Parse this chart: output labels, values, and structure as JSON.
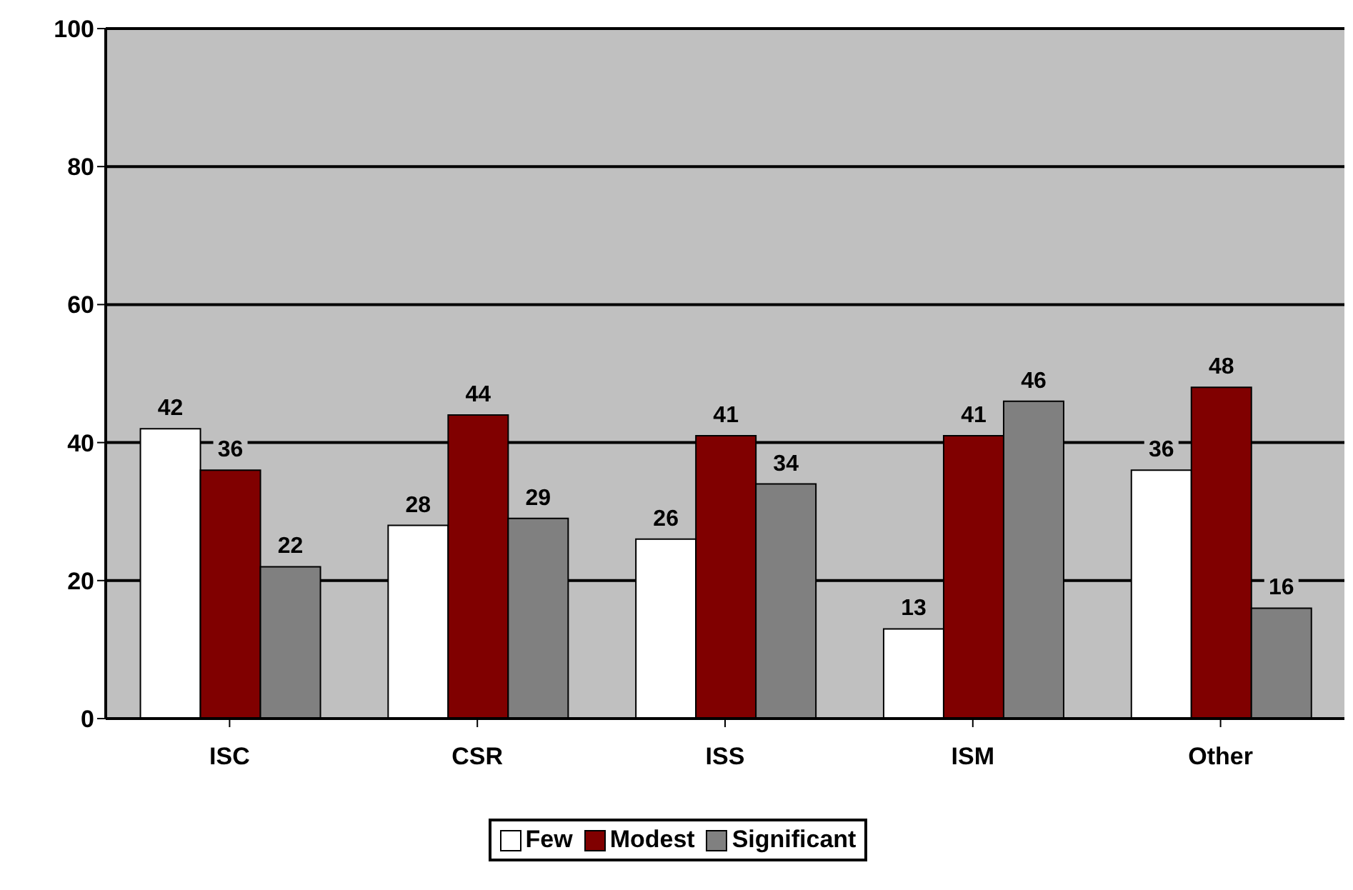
{
  "chart_data": {
    "type": "bar",
    "categories": [
      "ISC",
      "CSR",
      "ISS",
      "ISM",
      "Other"
    ],
    "series": [
      {
        "name": "Few",
        "color": "#ffffff",
        "values": [
          42,
          28,
          26,
          13,
          36
        ]
      },
      {
        "name": "Modest",
        "color": "#800000",
        "values": [
          36,
          44,
          41,
          41,
          48
        ]
      },
      {
        "name": "Significant",
        "color": "#808080",
        "values": [
          22,
          29,
          34,
          46,
          16
        ]
      }
    ],
    "ylim": [
      0,
      100
    ],
    "yticks": [
      0,
      20,
      40,
      60,
      80,
      100
    ],
    "grid": "y",
    "legend": "bottom",
    "data_labels": true
  }
}
